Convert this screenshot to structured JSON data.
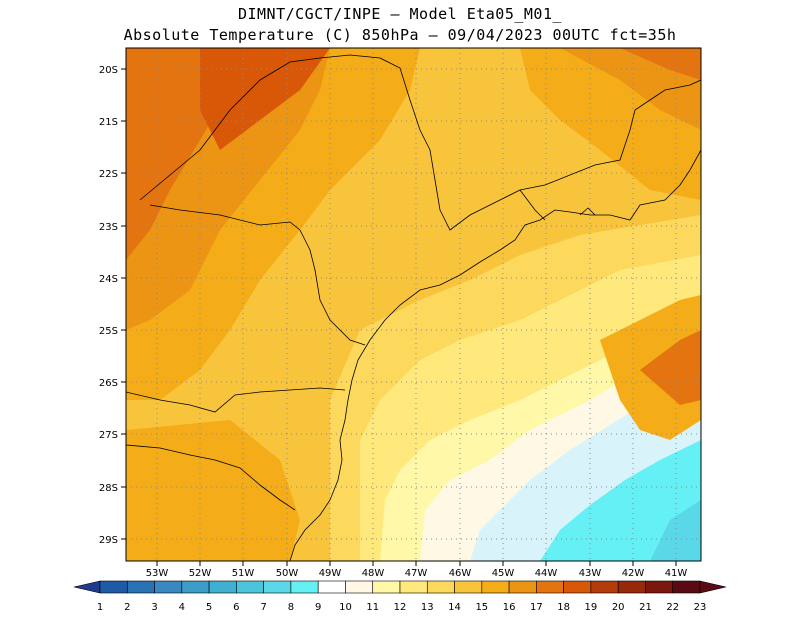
{
  "header": {
    "line1": "DIMNT/CGCT/INPE –  Model Eta05_M01_",
    "line2": "Absolute Temperature (C) 850hPa –  09/04/2023 00UTC fct=35h"
  },
  "map": {
    "lat_labels": [
      "20S",
      "21S",
      "22S",
      "23S",
      "24S",
      "25S",
      "26S",
      "27S",
      "28S",
      "29S"
    ],
    "lon_labels": [
      "53W",
      "52W",
      "51W",
      "50W",
      "49W",
      "48W",
      "47W",
      "46W",
      "45W",
      "44W",
      "43W",
      "42W",
      "41W"
    ],
    "grid_style": "dotted",
    "coastline_color": "#000000"
  },
  "colorbar": {
    "labels": [
      "1",
      "2",
      "3",
      "4",
      "5",
      "6",
      "7",
      "8",
      "9",
      "10",
      "11",
      "12",
      "13",
      "14",
      "15",
      "16",
      "17",
      "18",
      "19",
      "20",
      "21",
      "22",
      "23"
    ],
    "colors": [
      "#1e3c8c",
      "#1f5aa6",
      "#2a72b4",
      "#3a88c0",
      "#3b9cc8",
      "#40b0d2",
      "#4cc4dc",
      "#5ad8e8",
      "#64f0f4",
      "#ffffff",
      "#fff8e4",
      "#fff8a8",
      "#ffe87c",
      "#fcd85c",
      "#f8c43c",
      "#f4ac18",
      "#ec9414",
      "#e47410",
      "#d85808",
      "#b43c0c",
      "#96280c",
      "#7a1810",
      "#5a0a14"
    ]
  }
}
